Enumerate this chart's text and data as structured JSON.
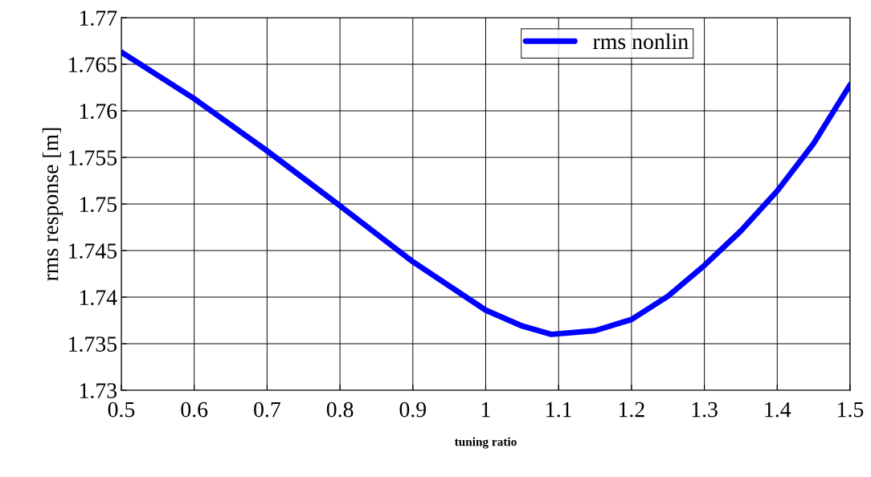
{
  "chart_data": {
    "type": "line",
    "xlabel": "tuning ratio",
    "ylabel": "rms response [m]",
    "x": [
      0.5,
      0.6,
      0.7,
      0.8,
      0.9,
      1.0,
      1.05,
      1.09,
      1.15,
      1.2,
      1.25,
      1.3,
      1.35,
      1.4,
      1.45,
      1.5
    ],
    "series": [
      {
        "name": "rms nonlin",
        "color": "#0000ff",
        "values": [
          1.7663,
          1.7613,
          1.7557,
          1.7498,
          1.7438,
          1.7386,
          1.7369,
          1.736,
          1.7364,
          1.7376,
          1.7401,
          1.7434,
          1.7471,
          1.7514,
          1.7565,
          1.7628
        ]
      }
    ],
    "xlim": [
      0.5,
      1.5
    ],
    "xticks": [
      0.5,
      0.6,
      0.7,
      0.8,
      0.9,
      1,
      1.1,
      1.2,
      1.3,
      1.4,
      1.5
    ],
    "ylim": [
      1.73,
      1.77
    ],
    "yticks": [
      1.73,
      1.735,
      1.74,
      1.745,
      1.75,
      1.755,
      1.76,
      1.765,
      1.77
    ],
    "grid": true,
    "legend": "top right",
    "marker": "none",
    "line_style": "solid"
  }
}
